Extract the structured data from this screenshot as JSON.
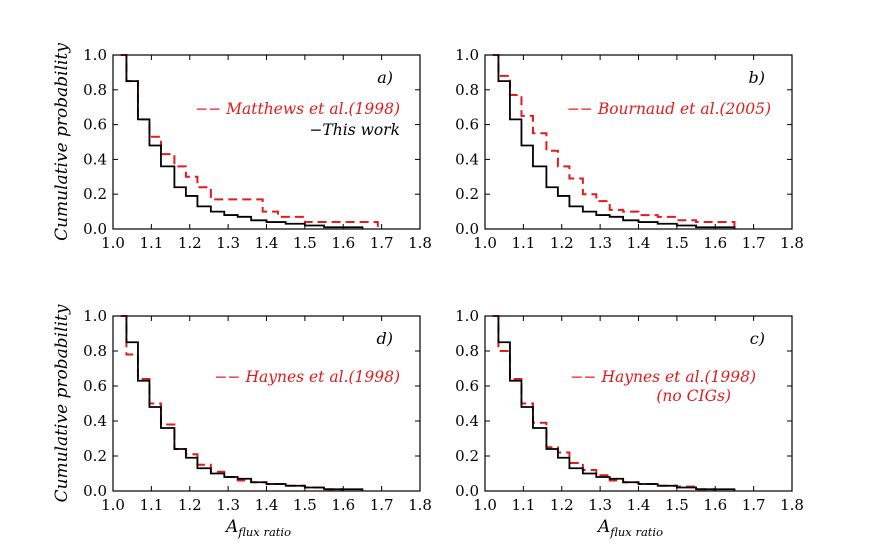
{
  "chart_data": [
    {
      "type": "step",
      "panel_label": "a)",
      "xlabel": "",
      "ylabel": "Cumulative probability",
      "xlim": [
        1.0,
        1.8
      ],
      "ylim": [
        0.0,
        1.0
      ],
      "xticks": [
        "1.0",
        "1.1",
        "1.2",
        "1.3",
        "1.4",
        "1.5",
        "1.6",
        "1.7",
        "1.8"
      ],
      "yticks": [
        "0.0",
        "0.2",
        "0.4",
        "0.6",
        "0.8",
        "1.0"
      ],
      "series": [
        {
          "name": "Matthews et al.(1998)",
          "legend": "−− Matthews et al.(1998)",
          "style": "dashed",
          "color": "#e41a1c",
          "x": [
            1.02,
            1.035,
            1.065,
            1.095,
            1.125,
            1.16,
            1.19,
            1.22,
            1.255,
            1.325,
            1.39,
            1.43,
            1.5,
            1.57,
            1.69
          ],
          "y": [
            1.0,
            0.85,
            0.63,
            0.53,
            0.43,
            0.36,
            0.3,
            0.24,
            0.17,
            0.17,
            0.1,
            0.07,
            0.04,
            0.04,
            0.0
          ]
        },
        {
          "name": "This work",
          "legend": "−This work",
          "style": "solid",
          "color": "#000000",
          "x": [
            1.035,
            1.065,
            1.095,
            1.125,
            1.16,
            1.19,
            1.22,
            1.255,
            1.29,
            1.325,
            1.36,
            1.4,
            1.45,
            1.5,
            1.55,
            1.65
          ],
          "y": [
            0.85,
            0.63,
            0.48,
            0.36,
            0.24,
            0.19,
            0.13,
            0.1,
            0.08,
            0.07,
            0.05,
            0.04,
            0.03,
            0.02,
            0.01,
            0.0
          ]
        }
      ]
    },
    {
      "type": "step",
      "panel_label": "b)",
      "xlabel": "",
      "ylabel": "",
      "xlim": [
        1.0,
        1.8
      ],
      "ylim": [
        0.0,
        1.0
      ],
      "xticks": [
        "1.0",
        "1.1",
        "1.2",
        "1.3",
        "1.4",
        "1.5",
        "1.6",
        "1.7",
        "1.8"
      ],
      "yticks": [
        "0.0",
        "0.2",
        "0.4",
        "0.6",
        "0.8",
        "1.0"
      ],
      "series": [
        {
          "name": "Bournaud et al.(2005)",
          "legend": "−− Bournaud et al.(2005)",
          "style": "dashed",
          "color": "#e41a1c",
          "x": [
            1.02,
            1.035,
            1.065,
            1.095,
            1.125,
            1.16,
            1.19,
            1.22,
            1.255,
            1.29,
            1.325,
            1.36,
            1.4,
            1.45,
            1.5,
            1.55,
            1.65
          ],
          "y": [
            1.0,
            0.88,
            0.77,
            0.65,
            0.55,
            0.45,
            0.36,
            0.29,
            0.2,
            0.16,
            0.11,
            0.1,
            0.08,
            0.07,
            0.05,
            0.04,
            0.0
          ]
        },
        {
          "name": "This work",
          "legend": "",
          "style": "solid",
          "color": "#000000",
          "x": [
            1.035,
            1.065,
            1.095,
            1.125,
            1.16,
            1.19,
            1.22,
            1.255,
            1.29,
            1.325,
            1.36,
            1.4,
            1.45,
            1.5,
            1.55,
            1.65
          ],
          "y": [
            0.85,
            0.63,
            0.48,
            0.36,
            0.24,
            0.19,
            0.13,
            0.1,
            0.08,
            0.07,
            0.05,
            0.04,
            0.03,
            0.02,
            0.01,
            0.0
          ]
        }
      ]
    },
    {
      "type": "step",
      "panel_label": "d)",
      "xlabel": "A_flux ratio",
      "ylabel": "Cumulative probability",
      "xlim": [
        1.0,
        1.8
      ],
      "ylim": [
        0.0,
        1.0
      ],
      "xticks": [
        "1.0",
        "1.1",
        "1.2",
        "1.3",
        "1.4",
        "1.5",
        "1.6",
        "1.7",
        "1.8"
      ],
      "yticks": [
        "0.0",
        "0.2",
        "0.4",
        "0.6",
        "0.8",
        "1.0"
      ],
      "series": [
        {
          "name": "Haynes et al.(1998)",
          "legend": "−− Haynes et al.(1998)",
          "style": "dashed",
          "color": "#e41a1c",
          "x": [
            1.02,
            1.035,
            1.065,
            1.095,
            1.125,
            1.16,
            1.19,
            1.22,
            1.255,
            1.29,
            1.325,
            1.36,
            1.4,
            1.45,
            1.5,
            1.55,
            1.6
          ],
          "y": [
            1.0,
            0.78,
            0.64,
            0.5,
            0.38,
            0.24,
            0.21,
            0.15,
            0.11,
            0.08,
            0.06,
            0.05,
            0.04,
            0.03,
            0.02,
            0.01,
            0.0
          ]
        },
        {
          "name": "This work",
          "legend": "",
          "style": "solid",
          "color": "#000000",
          "x": [
            1.035,
            1.065,
            1.095,
            1.125,
            1.16,
            1.19,
            1.22,
            1.255,
            1.29,
            1.325,
            1.36,
            1.4,
            1.45,
            1.5,
            1.55,
            1.65
          ],
          "y": [
            0.85,
            0.63,
            0.48,
            0.36,
            0.24,
            0.19,
            0.13,
            0.1,
            0.08,
            0.07,
            0.05,
            0.04,
            0.03,
            0.02,
            0.01,
            0.0
          ]
        }
      ]
    },
    {
      "type": "step",
      "panel_label": "c)",
      "xlabel": "A_flux ratio",
      "ylabel": "",
      "xlim": [
        1.0,
        1.8
      ],
      "ylim": [
        0.0,
        1.0
      ],
      "xticks": [
        "1.0",
        "1.1",
        "1.2",
        "1.3",
        "1.4",
        "1.5",
        "1.6",
        "1.7",
        "1.8"
      ],
      "yticks": [
        "0.0",
        "0.2",
        "0.4",
        "0.6",
        "0.8",
        "1.0"
      ],
      "series": [
        {
          "name": "Haynes et al.(1998) (no CIGs)",
          "legend": "−− Haynes et al.(1998)",
          "legend_line2": "(no CIGs)",
          "style": "dashed",
          "color": "#e41a1c",
          "x": [
            1.02,
            1.035,
            1.065,
            1.095,
            1.125,
            1.16,
            1.19,
            1.22,
            1.255,
            1.29,
            1.325,
            1.36,
            1.4,
            1.45,
            1.5,
            1.55,
            1.6
          ],
          "y": [
            1.0,
            0.8,
            0.64,
            0.5,
            0.39,
            0.25,
            0.22,
            0.16,
            0.12,
            0.09,
            0.06,
            0.05,
            0.04,
            0.03,
            0.025,
            0.01,
            0.0
          ]
        },
        {
          "name": "This work",
          "legend": "",
          "style": "solid",
          "color": "#000000",
          "x": [
            1.035,
            1.065,
            1.095,
            1.125,
            1.16,
            1.19,
            1.22,
            1.255,
            1.29,
            1.325,
            1.36,
            1.4,
            1.45,
            1.5,
            1.55,
            1.65
          ],
          "y": [
            0.85,
            0.63,
            0.48,
            0.36,
            0.24,
            0.19,
            0.13,
            0.1,
            0.08,
            0.07,
            0.05,
            0.04,
            0.03,
            0.02,
            0.01,
            0.0
          ]
        }
      ]
    }
  ]
}
